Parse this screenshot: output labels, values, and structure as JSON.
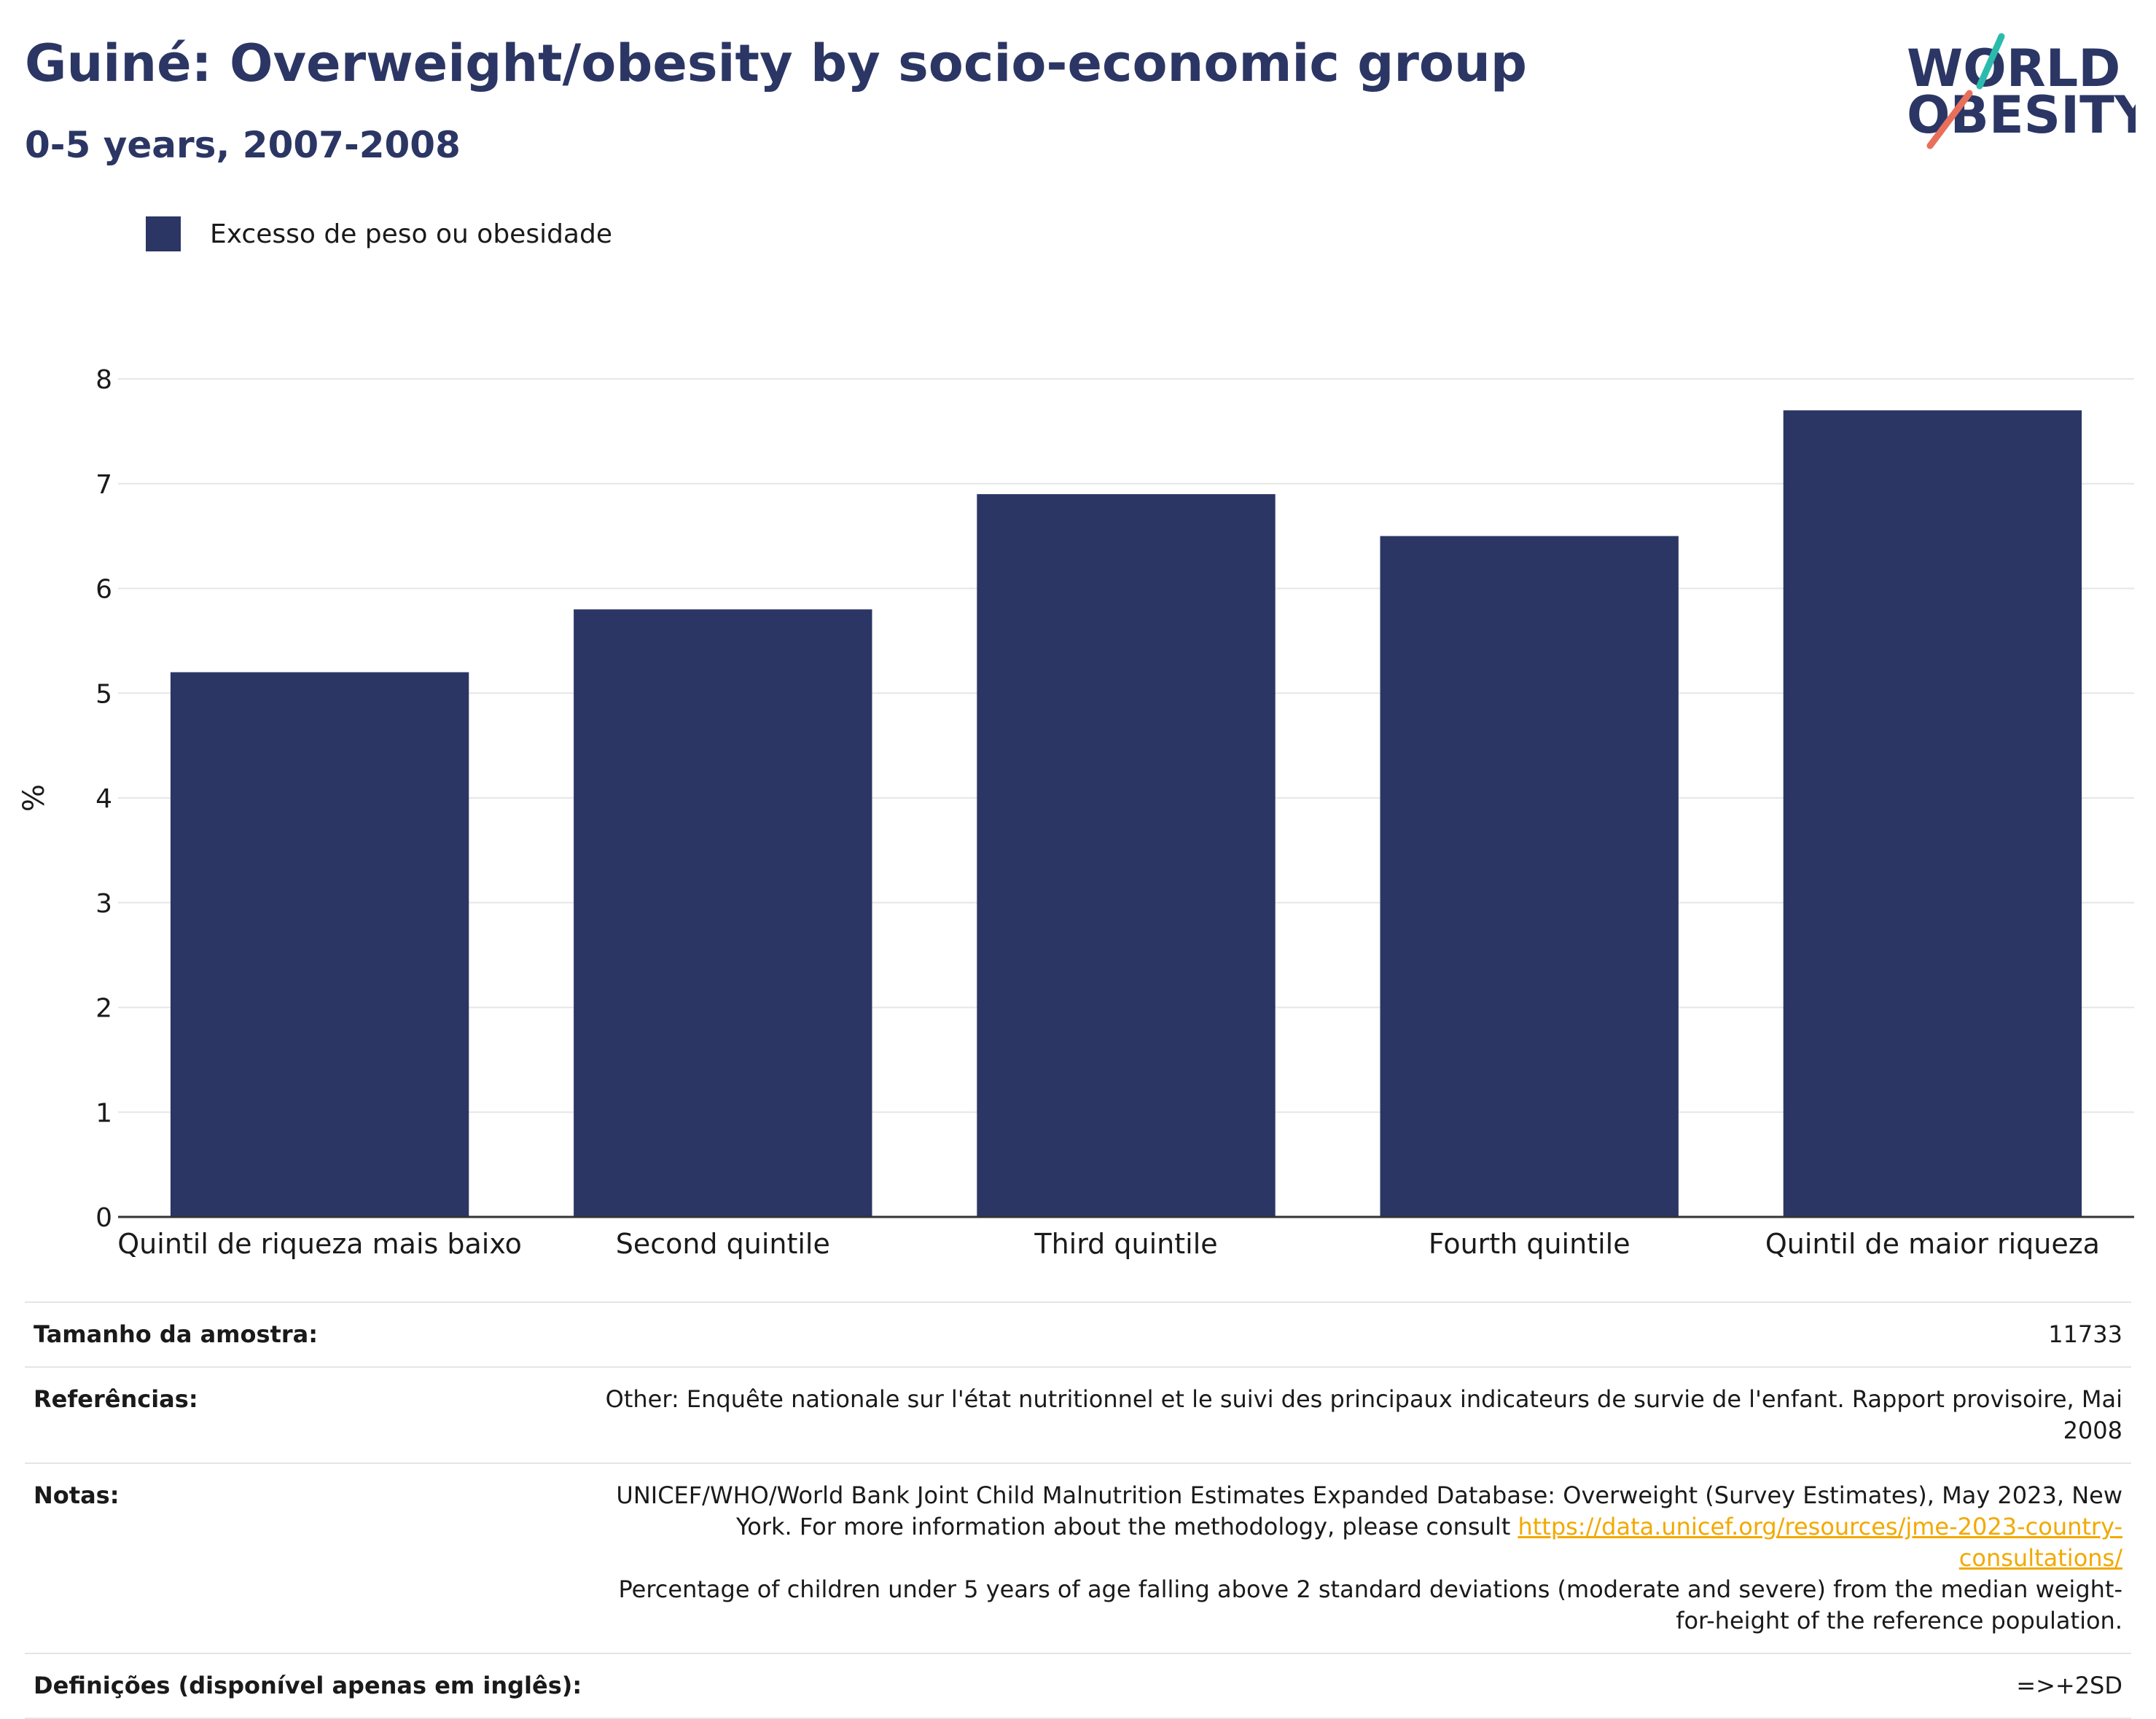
{
  "header": {
    "title": "Guiné: Overweight/obesity by socio-economic group",
    "subtitle": "0-5 years, 2007-2008"
  },
  "logo": {
    "line1": "WORLD",
    "line2": "OBESITY",
    "accent_colors": [
      "#2bbbad",
      "#e8705b"
    ]
  },
  "legend": {
    "label": "Excesso de peso ou obesidade",
    "color": "#2b3664"
  },
  "chart_data": {
    "type": "bar",
    "categories": [
      "Quintil de riqueza mais baixo",
      "Second quintile",
      "Third quintile",
      "Fourth quintile",
      "Quintil de maior riqueza"
    ],
    "series": [
      {
        "name": "Excesso de peso ou obesidade",
        "values": [
          5.2,
          5.8,
          6.9,
          6.5,
          7.7
        ],
        "color": "#2b3664"
      }
    ],
    "ylabel": "%",
    "xlabel": "",
    "ylim": [
      0,
      8
    ],
    "yticks": [
      0,
      1,
      2,
      3,
      4,
      5,
      6,
      7,
      8
    ],
    "grid": true,
    "legend_position": "top-left"
  },
  "info": {
    "sample_label": "Tamanho da amostra:",
    "sample_value": "11733",
    "references_label": "Referências:",
    "references_value": "Other: Enquête nationale sur l'état nutritionnel et le suivi des principaux indicateurs de survie de l'enfant. Rapport provisoire, Mai 2008",
    "notes_label": "Notas:",
    "notes_text1": "UNICEF/WHO/World Bank Joint Child Malnutrition Estimates Expanded Database: Overweight (Survey Estimates), May 2023, New York. For more information about the methodology, please consult ",
    "notes_link": "https://data.unicef.org/resources/jme-2023-country-consultations/",
    "notes_text2": "Percentage of children under 5 years of age falling above 2 standard deviations (moderate and severe) from the median weight-for-height of the reference population.",
    "definitions_label": "Definições (disponível apenas em inglês):",
    "definitions_value": "=>+2SD",
    "link_color": "#f2a900"
  }
}
